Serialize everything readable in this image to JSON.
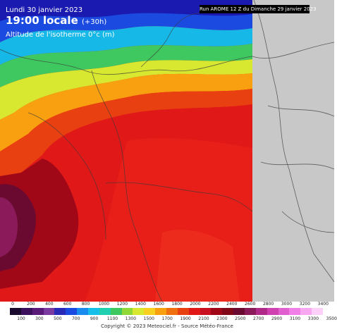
{
  "header": {
    "date_line": "Lundi 30 janvier 2023",
    "time_line": "19:00 locale",
    "lead_time": "(+30h)",
    "parameter": "Altitude de l'isotherme 0°c (m)",
    "run_info": "Run AROME 12 Z du Dimanche 29 janvier 2023"
  },
  "legend": {
    "top_values": [
      "0",
      "200",
      "400",
      "600",
      "800",
      "1000",
      "1200",
      "1400",
      "1600",
      "1800",
      "2000",
      "2200",
      "2400",
      "2600",
      "2800",
      "3000",
      "3200",
      "3400"
    ],
    "bottom_values": [
      "100",
      "300",
      "500",
      "700",
      "900",
      "1100",
      "1300",
      "1500",
      "1700",
      "1900",
      "2100",
      "2300",
      "2500",
      "2700",
      "2900",
      "3100",
      "3300",
      "3500"
    ],
    "colors": [
      "#1a0a2e",
      "#3b0f5c",
      "#5a1a7a",
      "#7a3aa0",
      "#2a2ab8",
      "#1a4ae0",
      "#1a8cf0",
      "#16c0e8",
      "#20d0b0",
      "#40c860",
      "#90d838",
      "#d8e830",
      "#f8d020",
      "#f8a010",
      "#f07010",
      "#e84010",
      "#e01818",
      "#c81020",
      "#a00818",
      "#800818",
      "#6a0a30",
      "#8a1a5a",
      "#b02a8a",
      "#d040b0",
      "#e060d0",
      "#f080e8",
      "#f8a8f0",
      "#fcd0f8"
    ],
    "credit": "Copyright © 2023 Meteociel.fr - Source Météo-France"
  },
  "map": {
    "grey_area_color": "#c8c8c8",
    "border_color": "#3a3a3a"
  }
}
